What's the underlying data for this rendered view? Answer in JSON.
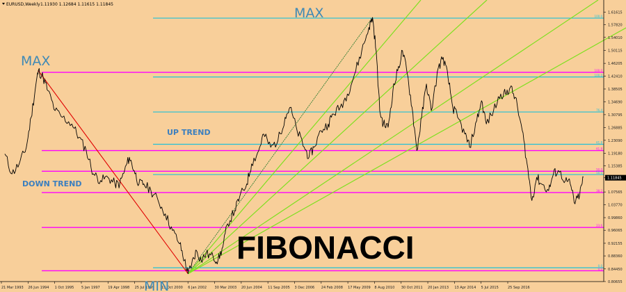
{
  "header": {
    "symbol": "EURUSD,Weekly",
    "quote": "1.11930 1.12684 1.11615 1.11845"
  },
  "colors": {
    "background": "#f8cf9a",
    "price": "#000000",
    "fib_magenta": "#ff00ff",
    "fib_cyan": "#20c0d8",
    "fan": "#7fe020",
    "down_trend_line": "#e00000",
    "up_trend_line": "#2e7d32",
    "annotation_blue": "#3f89b5"
  },
  "chart_data": {
    "type": "line",
    "title": "",
    "xlabel": "",
    "ylabel": "",
    "ylim": [
      0.8065,
      1.6315
    ],
    "grid": false,
    "last_price_label": "1.11845",
    "y_ticks": [
      "1.61615",
      "1.57820",
      "1.54010",
      "1.50115",
      "1.46205",
      "1.42410",
      "1.38505",
      "1.34690",
      "1.30795",
      "1.26885",
      "1.23090",
      "1.19180",
      "1.15385",
      "1.11845",
      "1.07565",
      "1.03770",
      "0.99860",
      "0.96065",
      "0.92155",
      "0.88360",
      "0.84450",
      "0.80655"
    ],
    "x_ticks": [
      "21 Mar 1993",
      "26 Jun 1994",
      "1 Oct 1995",
      "5 Jan 1997",
      "19 Apr 1998",
      "25 Jul 1999",
      "15 Oct 2000",
      "6 Jan 2002",
      "30 Mar 2003",
      "20 Jun 2004",
      "11 Sep 2005",
      "3 Dec 2006",
      "24 Feb 2008",
      "17 May 2009",
      "8 Aug 2010",
      "30 Oct 2011",
      "20 Jan 2013",
      "13 Apr 2014",
      "5 Jul 2015",
      "25 Sep 2016"
    ],
    "series": [
      {
        "values": [
          [
            1993.2,
            1.19
          ],
          [
            1993.5,
            1.13
          ],
          [
            1993.8,
            1.16
          ],
          [
            1994.1,
            1.21
          ],
          [
            1994.3,
            1.3
          ],
          [
            1994.5,
            1.4
          ],
          [
            1994.6,
            1.44
          ],
          [
            1994.8,
            1.42
          ],
          [
            1995.0,
            1.38
          ],
          [
            1995.3,
            1.32
          ],
          [
            1995.6,
            1.3
          ],
          [
            1996.0,
            1.28
          ],
          [
            1996.3,
            1.24
          ],
          [
            1996.6,
            1.2
          ],
          [
            1996.9,
            1.13
          ],
          [
            1997.2,
            1.11
          ],
          [
            1997.5,
            1.12
          ],
          [
            1997.8,
            1.1
          ],
          [
            1998.0,
            1.1
          ],
          [
            1998.2,
            1.14
          ],
          [
            1998.4,
            1.18
          ],
          [
            1998.6,
            1.14
          ],
          [
            1998.8,
            1.1
          ],
          [
            1999.0,
            1.1
          ],
          [
            1999.3,
            1.08
          ],
          [
            1999.6,
            1.05
          ],
          [
            1999.9,
            1.01
          ],
          [
            2000.2,
            0.96
          ],
          [
            2000.5,
            0.92
          ],
          [
            2000.7,
            0.87
          ],
          [
            2000.85,
            0.83
          ],
          [
            2001.0,
            0.86
          ],
          [
            2001.2,
            0.9
          ],
          [
            2001.4,
            0.87
          ],
          [
            2001.6,
            0.89
          ],
          [
            2001.9,
            0.88
          ],
          [
            2002.1,
            0.87
          ],
          [
            2002.3,
            0.91
          ],
          [
            2002.5,
            0.98
          ],
          [
            2002.8,
            1.02
          ],
          [
            2003.0,
            1.06
          ],
          [
            2003.3,
            1.1
          ],
          [
            2003.5,
            1.16
          ],
          [
            2003.8,
            1.2
          ],
          [
            2004.0,
            1.25
          ],
          [
            2004.3,
            1.21
          ],
          [
            2004.6,
            1.23
          ],
          [
            2004.9,
            1.3
          ],
          [
            2005.1,
            1.33
          ],
          [
            2005.4,
            1.26
          ],
          [
            2005.7,
            1.21
          ],
          [
            2005.9,
            1.18
          ],
          [
            2006.1,
            1.21
          ],
          [
            2006.4,
            1.26
          ],
          [
            2006.7,
            1.28
          ],
          [
            2006.9,
            1.31
          ],
          [
            2007.2,
            1.33
          ],
          [
            2007.5,
            1.37
          ],
          [
            2007.8,
            1.43
          ],
          [
            2008.1,
            1.5
          ],
          [
            2008.4,
            1.57
          ],
          [
            2008.55,
            1.6
          ],
          [
            2008.7,
            1.5
          ],
          [
            2008.85,
            1.32
          ],
          [
            2009.0,
            1.28
          ],
          [
            2009.2,
            1.27
          ],
          [
            2009.4,
            1.38
          ],
          [
            2009.6,
            1.44
          ],
          [
            2009.8,
            1.5
          ],
          [
            2010.0,
            1.43
          ],
          [
            2010.2,
            1.33
          ],
          [
            2010.4,
            1.2
          ],
          [
            2010.6,
            1.3
          ],
          [
            2010.8,
            1.4
          ],
          [
            2011.0,
            1.32
          ],
          [
            2011.3,
            1.45
          ],
          [
            2011.5,
            1.48
          ],
          [
            2011.7,
            1.42
          ],
          [
            2011.9,
            1.33
          ],
          [
            2012.1,
            1.3
          ],
          [
            2012.4,
            1.25
          ],
          [
            2012.6,
            1.21
          ],
          [
            2012.9,
            1.29
          ],
          [
            2013.1,
            1.35
          ],
          [
            2013.3,
            1.28
          ],
          [
            2013.6,
            1.32
          ],
          [
            2013.9,
            1.37
          ],
          [
            2014.1,
            1.37
          ],
          [
            2014.3,
            1.39
          ],
          [
            2014.5,
            1.36
          ],
          [
            2014.8,
            1.26
          ],
          [
            2015.0,
            1.16
          ],
          [
            2015.2,
            1.05
          ],
          [
            2015.4,
            1.12
          ],
          [
            2015.6,
            1.1
          ],
          [
            2015.9,
            1.08
          ],
          [
            2016.1,
            1.13
          ],
          [
            2016.3,
            1.14
          ],
          [
            2016.6,
            1.11
          ],
          [
            2016.8,
            1.1
          ],
          [
            2017.0,
            1.04
          ],
          [
            2017.2,
            1.07
          ],
          [
            2017.35,
            1.12
          ]
        ]
      }
    ],
    "fib_levels": [
      {
        "label": "0.0",
        "value": 0.839,
        "color": "#ff00ff"
      },
      {
        "label": "23.6",
        "value": 0.969,
        "color": "#ff00ff"
      },
      {
        "label": "38.2",
        "value": 1.074,
        "color": "#ff00ff"
      },
      {
        "label": "50.0",
        "value": 1.138,
        "color": "#ff00ff"
      },
      {
        "label": "61.8",
        "value": 1.2,
        "color": "#ff00ff"
      },
      {
        "label": "100.0",
        "value": 1.435,
        "color": "#ff00ff"
      },
      {
        "label": "0.0",
        "value": 0.848,
        "color": "#20c0d8"
      },
      {
        "label": "50.0",
        "value": 1.128,
        "color": "#20c0d8"
      },
      {
        "label": "61.8",
        "value": 1.219,
        "color": "#20c0d8"
      },
      {
        "label": "76.4",
        "value": 1.316,
        "color": "#20c0d8"
      },
      {
        "label": "100.0",
        "value": 1.421,
        "color": "#20c0d8"
      },
      {
        "label": "100.0",
        "value": 1.598,
        "color": "#20c0d8"
      }
    ],
    "annotations": [
      "MAX",
      "MAX",
      "MIN",
      "UP TREND",
      "DOWN TREND",
      "FIBONACCI"
    ]
  }
}
